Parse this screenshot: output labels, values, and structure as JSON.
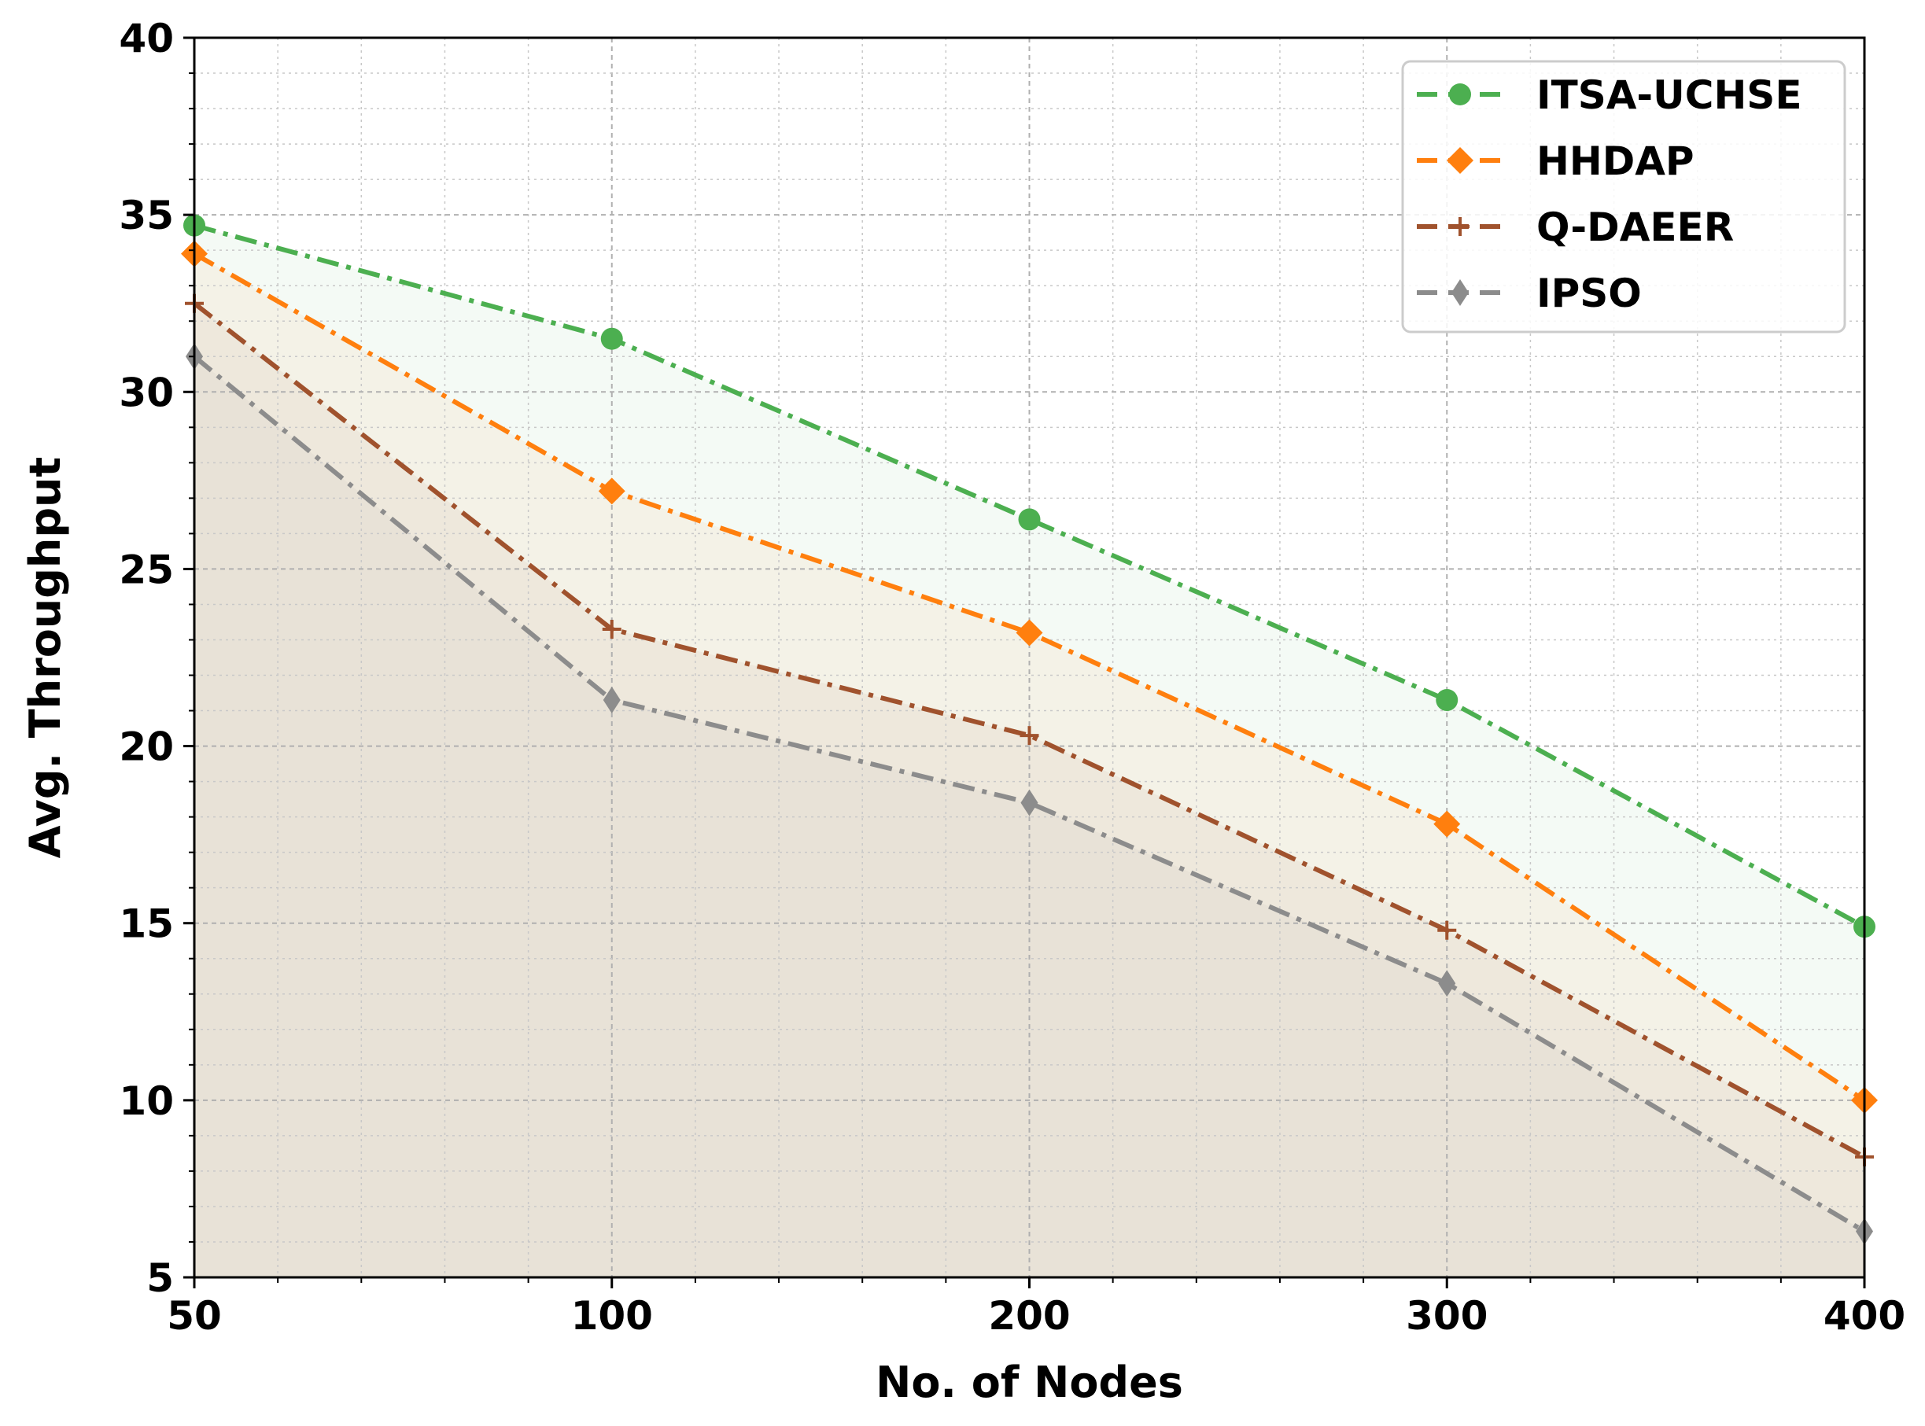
{
  "chart_data": {
    "type": "line",
    "title": "",
    "xlabel": "No. of Nodes",
    "ylabel": "Avg. Throughput",
    "x_ticks": [
      "50",
      "100",
      "200",
      "300",
      "400"
    ],
    "y_ticks": [
      5,
      10,
      15,
      20,
      25,
      30,
      35,
      40
    ],
    "ylim": [
      5,
      40
    ],
    "grid": true,
    "legend_position": "top-right",
    "series": [
      {
        "name": "ITSA-UCHSE",
        "color": "#4caf50",
        "marker": "circle",
        "values": [
          34.7,
          31.5,
          26.4,
          21.3,
          14.9
        ]
      },
      {
        "name": "HHDAP",
        "color": "#ff7f0e",
        "marker": "diamond",
        "values": [
          33.9,
          27.2,
          23.2,
          17.8,
          10.0
        ]
      },
      {
        "name": "Q-DAEER",
        "color": "#a0522d",
        "marker": "plus",
        "values": [
          32.5,
          23.3,
          20.3,
          14.8,
          8.4
        ]
      },
      {
        "name": "IPSO",
        "color": "#8c8c8c",
        "marker": "thin-diamond",
        "values": [
          31.0,
          21.3,
          18.4,
          13.3,
          6.3
        ]
      }
    ]
  }
}
